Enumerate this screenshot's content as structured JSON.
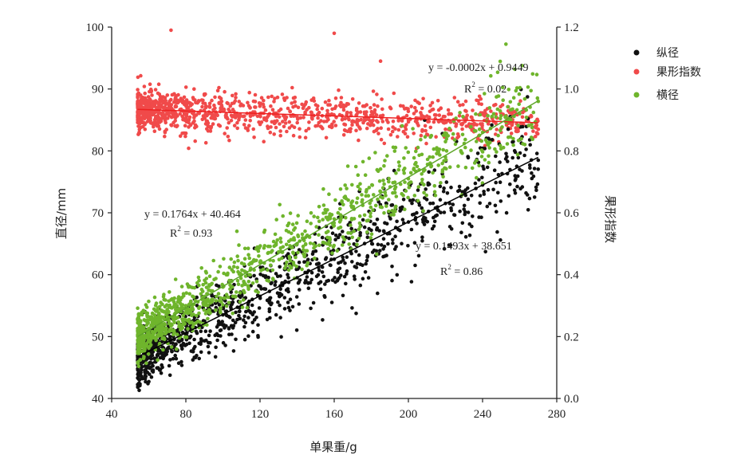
{
  "chart_data": {
    "type": "scatter",
    "xlabel": "单果重/g",
    "ylabel_left": "直径/mm",
    "ylabel_right": "果形指数",
    "xlim": [
      40,
      280
    ],
    "x_ticks": [
      40,
      80,
      120,
      160,
      200,
      240,
      280
    ],
    "ylim_left": [
      40,
      100
    ],
    "y_ticks_left": [
      40,
      50,
      60,
      70,
      80,
      90,
      100
    ],
    "ylim_right": [
      0.0,
      1.2
    ],
    "y_ticks_right": [
      "0.0",
      "0.2",
      "0.4",
      "0.6",
      "0.8",
      "1.0",
      "1.2"
    ],
    "x_range_observed": [
      54,
      270
    ],
    "legend_position": "top-right",
    "series": [
      {
        "name": "纵径",
        "axis": "left",
        "color": "#111111",
        "trend": {
          "slope": 0.1493,
          "intercept": 38.651,
          "equation": "y = 0.1493x + 38.651",
          "r2_label": "R",
          "r2_sup": "2",
          "r2_value": " = 0.86"
        },
        "sample_points": [
          [
            55,
            43
          ],
          [
            60,
            45
          ],
          [
            65,
            47
          ],
          [
            70,
            48
          ],
          [
            80,
            50
          ],
          [
            90,
            52
          ],
          [
            100,
            53.5
          ],
          [
            110,
            55
          ],
          [
            120,
            56.5
          ],
          [
            140,
            59.5
          ],
          [
            160,
            62.5
          ],
          [
            180,
            65.5
          ],
          [
            200,
            68.5
          ],
          [
            220,
            71.5
          ],
          [
            240,
            74.5
          ],
          [
            260,
            77
          ],
          [
            270,
            78.5
          ]
        ]
      },
      {
        "name": "果形指数",
        "axis": "right",
        "color": "#f04a4a",
        "trend": {
          "slope": -0.0002,
          "intercept": 0.9449,
          "equation": "y = -0.0002x + 0.9449",
          "r2_label": "R",
          "r2_sup": "2",
          "r2_value": " = 0.02"
        },
        "sample_points": [
          [
            55,
            0.93
          ],
          [
            60,
            0.95
          ],
          [
            70,
            0.98
          ],
          [
            72,
            1.19
          ],
          [
            80,
            0.96
          ],
          [
            100,
            0.93
          ],
          [
            120,
            0.92
          ],
          [
            160,
            1.18
          ],
          [
            185,
            1.09
          ],
          [
            200,
            0.9
          ],
          [
            220,
            0.87
          ],
          [
            250,
            0.86
          ],
          [
            270,
            0.87
          ]
        ]
      },
      {
        "name": "横径",
        "axis": "left",
        "color": "#6fb52c",
        "trend": {
          "slope": 0.1764,
          "intercept": 40.464,
          "equation": "y = 0.1764x + 40.464",
          "r2_label": "R",
          "r2_sup": "2",
          "r2_value": " = 0.93"
        },
        "sample_points": [
          [
            55,
            48.5
          ],
          [
            60,
            50
          ],
          [
            65,
            52
          ],
          [
            70,
            53
          ],
          [
            80,
            55
          ],
          [
            90,
            56.5
          ],
          [
            100,
            58
          ],
          [
            110,
            60
          ],
          [
            120,
            62
          ],
          [
            140,
            65
          ],
          [
            160,
            69
          ],
          [
            180,
            72
          ],
          [
            200,
            75.5
          ],
          [
            220,
            79
          ],
          [
            240,
            83
          ],
          [
            260,
            86
          ],
          [
            270,
            88
          ]
        ]
      }
    ]
  }
}
